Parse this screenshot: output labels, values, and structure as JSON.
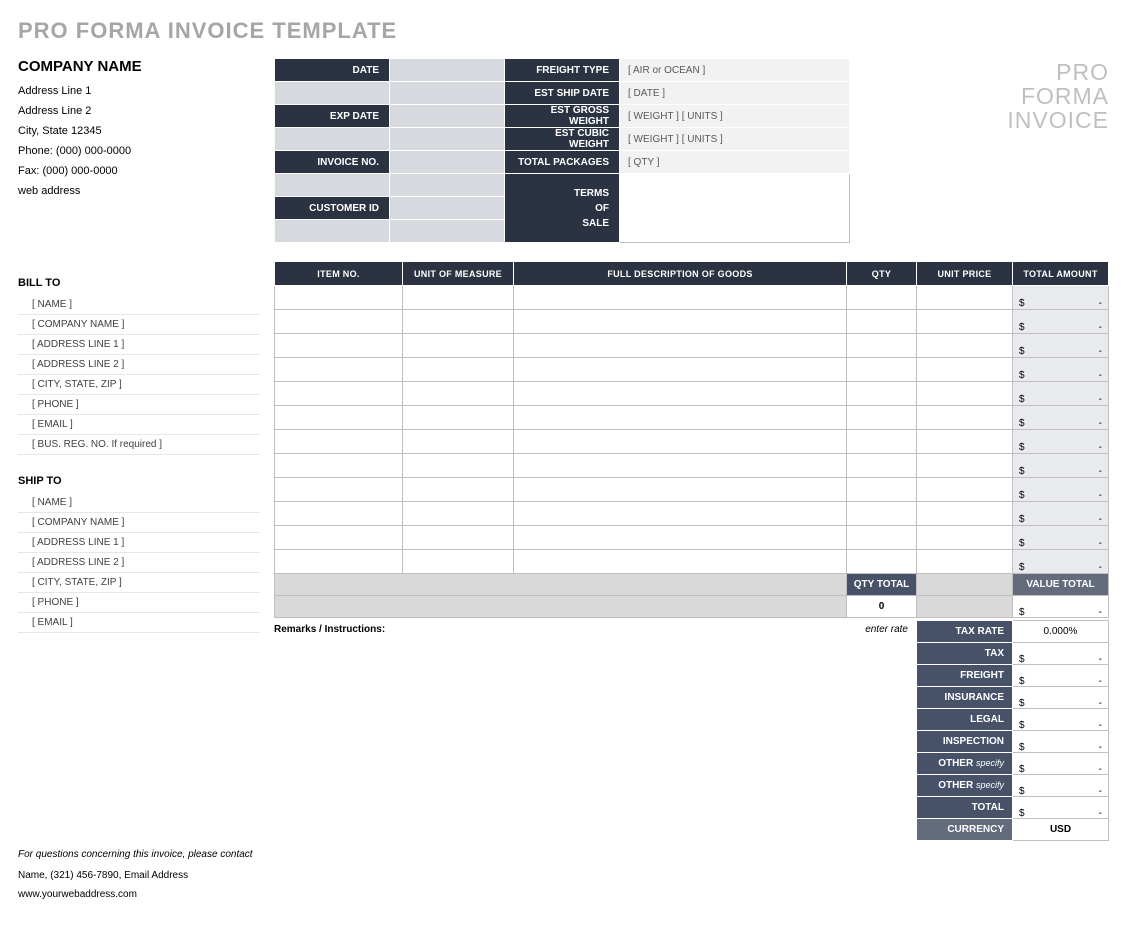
{
  "page_title": "PRO FORMA INVOICE TEMPLATE",
  "brand": {
    "l1": "PRO",
    "l2": "FORMA",
    "l3": "INVOICE"
  },
  "colors": {
    "header_dark": "#2b3342",
    "header_mid": "#475268",
    "header_grey": "#636b7c",
    "cell_grey": "#d9d9d9",
    "cell_light": "#e8eaee",
    "meta_val_bg": "#f2f2f2",
    "title_grey": "#a6a6a6",
    "brand_grey": "#bfbfbf"
  },
  "company": {
    "name": "COMPANY NAME",
    "addr1": "Address Line 1",
    "addr2": "Address Line 2",
    "city": "City, State  12345",
    "phone": "Phone: (000) 000-0000",
    "fax": "Fax: (000) 000-0000",
    "web": "web address"
  },
  "meta": {
    "labels": {
      "date": "DATE",
      "exp_date": "EXP DATE",
      "invoice_no": "INVOICE NO.",
      "customer_id": "CUSTOMER ID",
      "freight_type": "FREIGHT TYPE",
      "est_ship_date": "EST SHIP DATE",
      "est_gross_weight": "EST GROSS WEIGHT",
      "est_cubic_weight": "EST CUBIC WEIGHT",
      "total_packages": "TOTAL PACKAGES",
      "terms_of_sale_l1": "TERMS",
      "terms_of_sale_l2": "OF",
      "terms_of_sale_l3": "SALE"
    },
    "values": {
      "freight_type": "[ AIR or OCEAN ]",
      "est_ship_date": "[ DATE ]",
      "est_gross_weight": "[ WEIGHT ]   [ UNITS ]",
      "est_cubic_weight": "[ WEIGHT ]   [ UNITS ]",
      "total_packages": "[ QTY ]"
    }
  },
  "bill_to": {
    "header": "BILL TO",
    "lines": [
      "[ NAME ]",
      "[ COMPANY NAME ]",
      "[ ADDRESS LINE 1 ]",
      "[ ADDRESS LINE 2 ]",
      "[ CITY, STATE, ZIP ]",
      "[ PHONE ]",
      "[ EMAIL ]",
      "[ BUS. REG. NO.  If required ]"
    ]
  },
  "ship_to": {
    "header": "SHIP TO",
    "lines": [
      "[ NAME ]",
      "[ COMPANY NAME ]",
      "[ ADDRESS LINE 1 ]",
      "[ ADDRESS LINE 2 ]",
      "[ CITY, STATE, ZIP ]",
      "[ PHONE ]",
      "[ EMAIL ]"
    ]
  },
  "items": {
    "headers": {
      "item_no": "ITEM NO.",
      "uom": "UNIT OF MEASURE",
      "desc": "FULL DESCRIPTION OF GOODS",
      "qty": "QTY",
      "unit_price": "UNIT PRICE",
      "total_amount": "TOTAL AMOUNT"
    },
    "row_count": 12,
    "amount_symbol": "$",
    "amount_dash": "-"
  },
  "summary": {
    "qty_total_label": "QTY TOTAL",
    "qty_total_value": "0",
    "value_total_label": "VALUE TOTAL",
    "remarks_label": "Remarks / Instructions:",
    "enter_rate": "enter rate",
    "rows": [
      {
        "label": "TAX RATE",
        "value": "0.000%",
        "money": false
      },
      {
        "label": "TAX",
        "value": "",
        "money": true
      },
      {
        "label": "FREIGHT",
        "value": "",
        "money": true
      },
      {
        "label": "INSURANCE",
        "value": "",
        "money": true
      },
      {
        "label": "LEGAL",
        "value": "",
        "money": true
      },
      {
        "label": "INSPECTION",
        "value": "",
        "money": true
      },
      {
        "label": "OTHER",
        "spec": "specify",
        "value": "",
        "money": true
      },
      {
        "label": "OTHER",
        "spec": "specify",
        "value": "",
        "money": true
      }
    ],
    "total_label": "TOTAL",
    "currency_label": "CURRENCY",
    "currency_value": "USD"
  },
  "footer": {
    "q": "For questions concerning this invoice, please contact",
    "contact": "Name, (321) 456-7890, Email Address",
    "web": "www.yourwebaddress.com"
  }
}
